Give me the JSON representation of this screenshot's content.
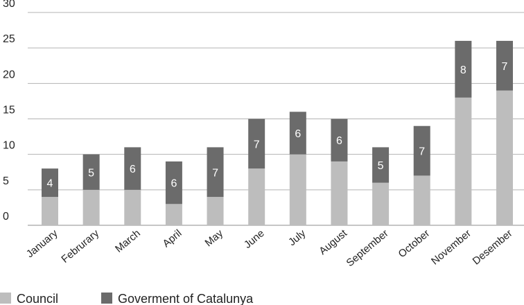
{
  "chart_data": {
    "type": "bar",
    "stacked": true,
    "categories": [
      "January",
      "Februrary",
      "March",
      "April",
      "May",
      "June",
      "July",
      "August",
      "September",
      "October",
      "November",
      "Desember"
    ],
    "series": [
      {
        "name": "Council",
        "values": [
          4,
          5,
          5,
          3,
          4,
          8,
          10,
          9,
          6,
          7,
          18,
          19
        ],
        "color": "#bdbdbd"
      },
      {
        "name": "Goverment of Catalunya",
        "values": [
          4,
          5,
          6,
          6,
          7,
          7,
          6,
          6,
          5,
          7,
          8,
          7
        ],
        "color": "#6b6b6b"
      }
    ],
    "data_labels": [
      "4",
      "5",
      "6",
      "6",
      "7",
      "7",
      "6",
      "6",
      "5",
      "7",
      "8",
      "7"
    ],
    "yticks": [
      "0",
      "5",
      "10",
      "15",
      "20",
      "25",
      "30"
    ],
    "ylim": [
      0,
      30
    ],
    "grid": true,
    "legend": "bottom-left",
    "title": "",
    "xlabel": "",
    "ylabel": ""
  }
}
